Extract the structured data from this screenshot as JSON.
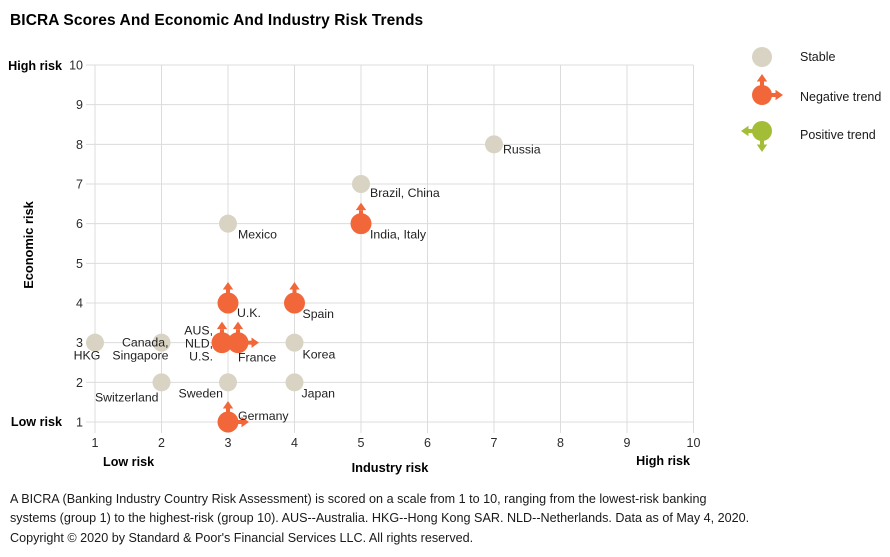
{
  "title": "BICRA Scores And Economic And Industry Risk Trends",
  "colors": {
    "stable": "#d9d3c3",
    "negative": "#f2673a",
    "positive": "#a4bd37",
    "grid": "#dcdcdc",
    "tick_text": "#2b2b2b",
    "label_text": "#1f1f1f",
    "axis_text": "#000000"
  },
  "legend": {
    "items": [
      {
        "label": "Stable",
        "type": "stable"
      },
      {
        "label": "Negative trend",
        "type": "negative"
      },
      {
        "label": "Positive trend",
        "type": "positive"
      }
    ]
  },
  "chart_data": {
    "type": "scatter",
    "title": "BICRA Scores And Economic And Industry Risk Trends",
    "xlabel": "Industry risk",
    "ylabel": "Economic risk",
    "x_low_label": "Low risk",
    "x_high_label": "High risk",
    "y_low_label": "Low risk",
    "y_high_label": "High risk",
    "xlim": [
      1,
      10
    ],
    "ylim": [
      1,
      10
    ],
    "xticks": [
      1,
      2,
      3,
      4,
      5,
      6,
      7,
      8,
      9,
      10
    ],
    "yticks": [
      1,
      2,
      3,
      4,
      5,
      6,
      7,
      8,
      9,
      10
    ],
    "grid": true,
    "legend_position": "top-right",
    "points": [
      {
        "label": "Russia",
        "x": 7,
        "y": 8,
        "trend": "stable",
        "arrows": [],
        "label_lines": [
          "Russia"
        ],
        "anchor": "start",
        "dx": 9,
        "dys": [
          9
        ]
      },
      {
        "label": "Brazil, China",
        "x": 5,
        "y": 7,
        "trend": "stable",
        "arrows": [],
        "label_lines": [
          "Brazil, China"
        ],
        "anchor": "start",
        "dx": 9,
        "dys": [
          13
        ]
      },
      {
        "label": "India, Italy",
        "x": 5,
        "y": 6,
        "trend": "negative",
        "arrows": [
          "up"
        ],
        "label_lines": [
          "India, Italy"
        ],
        "anchor": "start",
        "dx": 9,
        "dys": [
          15
        ]
      },
      {
        "label": "Mexico",
        "x": 3,
        "y": 6,
        "trend": "stable",
        "arrows": [],
        "label_lines": [
          "Mexico"
        ],
        "anchor": "start",
        "dx": 10,
        "dys": [
          15
        ]
      },
      {
        "label": "U.K.",
        "x": 3,
        "y": 4,
        "trend": "negative",
        "arrows": [
          "up"
        ],
        "label_lines": [
          "U.K."
        ],
        "anchor": "start",
        "dx": 9,
        "dys": [
          14
        ]
      },
      {
        "label": "Spain",
        "x": 4,
        "y": 4,
        "trend": "negative",
        "arrows": [
          "up"
        ],
        "label_lines": [
          "Spain"
        ],
        "anchor": "start",
        "dx": 8,
        "dys": [
          15
        ]
      },
      {
        "label": "HKG",
        "x": 1,
        "y": 3,
        "trend": "stable",
        "arrows": [],
        "label_lines": [
          "HKG"
        ],
        "anchor": "middle",
        "dx": -8,
        "dys": [
          17
        ]
      },
      {
        "label": "Canada, Singapore",
        "x": 2,
        "y": 3,
        "trend": "stable",
        "arrows": [],
        "label_lines": [
          "Canada,",
          "Singapore"
        ],
        "anchor": "end",
        "dx": 7,
        "dys": [
          4,
          17
        ]
      },
      {
        "label": "AUS, NLD, U.S.",
        "x": 3,
        "y": 3,
        "trend": "negative",
        "arrows": [
          "up"
        ],
        "dot_dx": -6,
        "label_lines": [
          "AUS,",
          "NLD,",
          "U.S."
        ],
        "anchor": "end",
        "dx": -9,
        "dys": [
          -8,
          5,
          18
        ]
      },
      {
        "label": "France",
        "x": 3,
        "y": 3,
        "trend": "negative",
        "arrows": [
          "up",
          "right"
        ],
        "dot_dx": 10,
        "label_lines": [
          "France"
        ],
        "anchor": "start",
        "dx": 0,
        "dys": [
          19
        ]
      },
      {
        "label": "Korea",
        "x": 4,
        "y": 3,
        "trend": "stable",
        "arrows": [],
        "label_lines": [
          "Korea"
        ],
        "anchor": "start",
        "dx": 8,
        "dys": [
          16
        ]
      },
      {
        "label": "Switzerland",
        "x": 2,
        "y": 2,
        "trend": "stable",
        "arrows": [],
        "label_lines": [
          "Switzerland"
        ],
        "anchor": "end",
        "dx": -3,
        "dys": [
          19
        ]
      },
      {
        "label": "Sweden",
        "x": 3,
        "y": 2,
        "trend": "stable",
        "arrows": [],
        "label_lines": [
          "Sweden"
        ],
        "anchor": "end",
        "dx": -5,
        "dys": [
          15
        ]
      },
      {
        "label": "Japan",
        "x": 4,
        "y": 2,
        "trend": "stable",
        "arrows": [],
        "label_lines": [
          "Japan"
        ],
        "anchor": "start",
        "dx": 7,
        "dys": [
          15
        ]
      },
      {
        "label": "Germany",
        "x": 3,
        "y": 1,
        "trend": "negative",
        "arrows": [
          "up",
          "right"
        ],
        "label_lines": [
          "Germany"
        ],
        "anchor": "start",
        "dx": 10,
        "dys": [
          -2
        ]
      }
    ]
  },
  "footnote": {
    "lines": [
      "A BICRA (Banking Industry Country Risk Assessment) is scored on a scale from 1 to 10, ranging from the lowest-risk banking",
      "systems (group 1) to the highest-risk (group 10). AUS--Australia. HKG--Hong Kong SAR. NLD--Netherlands. Data as of May 4, 2020.",
      "Copyright © 2020 by Standard & Poor's Financial Services LLC. All rights reserved."
    ]
  }
}
